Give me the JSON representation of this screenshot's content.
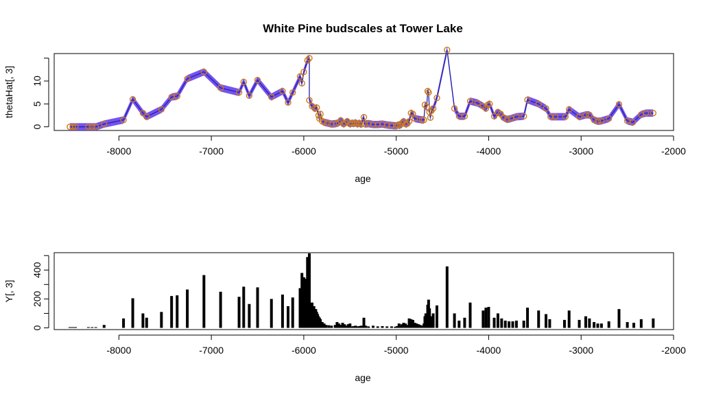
{
  "chart_data": [
    {
      "type": "line",
      "title": "White Pine budscales at Tower Lake",
      "xlabel": "age",
      "ylabel": "thetaHat[, 3]",
      "xlim": [
        -8700,
        -2000
      ],
      "ylim": [
        -0.8,
        16
      ],
      "x_ticks": [
        -8000,
        -7000,
        -6000,
        -5000,
        -4000,
        -3000,
        -2000
      ],
      "x_tick_labels": [
        "-8000",
        "-7000",
        "-6000",
        "-5000",
        "-4000",
        "-3000",
        "-2000"
      ],
      "y_ticks": [
        0,
        5,
        10
      ],
      "y_tick_labels": [
        "0",
        "5",
        "10"
      ],
      "y_minor_ticks": [
        15
      ],
      "colors": {
        "band": "#6640ee",
        "line": "#2222aa",
        "points": "#cc7a1a"
      },
      "band_width": 0.8,
      "series": [
        {
          "points": [
            [
              -8530,
              0
            ],
            [
              -8500,
              0
            ],
            [
              -8470,
              0
            ],
            [
              -8330,
              0
            ],
            [
              -8290,
              0
            ],
            [
              -8250,
              0
            ],
            [
              -8160,
              0.6
            ],
            [
              -7950,
              1.5
            ],
            [
              -7850,
              6
            ],
            [
              -7740,
              3
            ],
            [
              -7700,
              2.2
            ],
            [
              -7540,
              3.8
            ],
            [
              -7430,
              6.5
            ],
            [
              -7370,
              6.7
            ],
            [
              -7260,
              10.5
            ],
            [
              -7080,
              12
            ],
            [
              -6900,
              8.5
            ],
            [
              -6700,
              7.5
            ],
            [
              -6650,
              9.8
            ],
            [
              -6590,
              6.8
            ],
            [
              -6500,
              10.2
            ],
            [
              -6350,
              6.5
            ],
            [
              -6230,
              7.8
            ],
            [
              -6170,
              5.3
            ],
            [
              -6120,
              7.5
            ],
            [
              -6040,
              11
            ],
            [
              -6020,
              9.5
            ],
            [
              -6000,
              12
            ],
            [
              -5960,
              14.5
            ],
            [
              -5940,
              15
            ],
            [
              -5940,
              5.8
            ],
            [
              -5910,
              4.5
            ],
            [
              -5880,
              4
            ],
            [
              -5860,
              4.2
            ],
            [
              -5840,
              2.5
            ],
            [
              -5830,
              1.8
            ],
            [
              -5820,
              2.8
            ],
            [
              -5800,
              1.2
            ],
            [
              -5780,
              1
            ],
            [
              -5740,
              0.8
            ],
            [
              -5700,
              0.6
            ],
            [
              -5650,
              0.7
            ],
            [
              -5620,
              0.9
            ],
            [
              -5600,
              1.4
            ],
            [
              -5570,
              0.6
            ],
            [
              -5550,
              0.8
            ],
            [
              -5530,
              1.2
            ],
            [
              -5500,
              0.6
            ],
            [
              -5480,
              0.8
            ],
            [
              -5460,
              0.7
            ],
            [
              -5440,
              0.9
            ],
            [
              -5420,
              0.6
            ],
            [
              -5400,
              0.8
            ],
            [
              -5380,
              0.5
            ],
            [
              -5350,
              2.1
            ],
            [
              -5340,
              0.6
            ],
            [
              -5300,
              0.7
            ],
            [
              -5250,
              0.5
            ],
            [
              -5200,
              0.5
            ],
            [
              -5150,
              0.6
            ],
            [
              -5100,
              0.4
            ],
            [
              -5050,
              0.3
            ],
            [
              -5000,
              0.2
            ],
            [
              -4980,
              0.4
            ],
            [
              -4960,
              0.3
            ],
            [
              -4940,
              0.8
            ],
            [
              -4920,
              1.2
            ],
            [
              -4900,
              0.6
            ],
            [
              -4880,
              0.7
            ],
            [
              -4860,
              1.2
            ],
            [
              -4840,
              3
            ],
            [
              -4820,
              2.8
            ],
            [
              -4800,
              1.8
            ],
            [
              -4720,
              1.5
            ],
            [
              -4700,
              1.5
            ],
            [
              -4690,
              4.8
            ],
            [
              -4670,
              4.3
            ],
            [
              -4660,
              7.8
            ],
            [
              -4650,
              7.5
            ],
            [
              -4640,
              3.2
            ],
            [
              -4630,
              2
            ],
            [
              -4620,
              3.5
            ],
            [
              -4600,
              4
            ],
            [
              -4560,
              6.3
            ],
            [
              -4450,
              16.8
            ],
            [
              -4370,
              4
            ],
            [
              -4320,
              2.3
            ],
            [
              -4260,
              2.3
            ],
            [
              -4200,
              5.6
            ],
            [
              -4120,
              5.2
            ],
            [
              -4060,
              4.5
            ],
            [
              -4030,
              4
            ],
            [
              -4010,
              4.8
            ],
            [
              -3990,
              5
            ],
            [
              -3940,
              2.3
            ],
            [
              -3900,
              3.2
            ],
            [
              -3870,
              2.8
            ],
            [
              -3840,
              2
            ],
            [
              -3800,
              1.6
            ],
            [
              -3760,
              1.8
            ],
            [
              -3700,
              2.2
            ],
            [
              -3620,
              2.3
            ],
            [
              -3580,
              5.9
            ],
            [
              -3460,
              5
            ],
            [
              -3380,
              4
            ],
            [
              -3330,
              2.2
            ],
            [
              -3280,
              2.2
            ],
            [
              -3170,
              2.2
            ],
            [
              -3130,
              3.8
            ],
            [
              -3020,
              2.2
            ],
            [
              -2950,
              2.6
            ],
            [
              -2910,
              2.6
            ],
            [
              -2860,
              1.5
            ],
            [
              -2820,
              1.2
            ],
            [
              -2780,
              1.3
            ],
            [
              -2700,
              1.8
            ],
            [
              -2590,
              4.9
            ],
            [
              -2500,
              1.3
            ],
            [
              -2440,
              1
            ],
            [
              -2350,
              2.7
            ],
            [
              -2300,
              3
            ],
            [
              -2220,
              3
            ]
          ]
        }
      ]
    },
    {
      "type": "bar",
      "title": "",
      "xlabel": "age",
      "ylabel": "Y[, 3]",
      "xlim": [
        -8700,
        -2000
      ],
      "ylim": [
        -12,
        520
      ],
      "x_ticks": [
        -8000,
        -7000,
        -6000,
        -5000,
        -4000,
        -3000,
        -2000
      ],
      "x_tick_labels": [
        "-8000",
        "-7000",
        "-6000",
        "-5000",
        "-4000",
        "-3000",
        "-2000"
      ],
      "y_ticks": [
        0,
        200,
        400
      ],
      "y_tick_labels": [
        "0",
        "200",
        "400"
      ],
      "y_minor_ticks": [
        100,
        300,
        500
      ],
      "colors": {
        "bars": "#000000"
      },
      "points": [
        [
          -8530,
          5
        ],
        [
          -8500,
          5
        ],
        [
          -8470,
          5
        ],
        [
          -8330,
          5
        ],
        [
          -8290,
          5
        ],
        [
          -8250,
          5
        ],
        [
          -8160,
          20
        ],
        [
          -7950,
          65
        ],
        [
          -7850,
          205
        ],
        [
          -7740,
          100
        ],
        [
          -7700,
          70
        ],
        [
          -7540,
          110
        ],
        [
          -7430,
          220
        ],
        [
          -7370,
          225
        ],
        [
          -7260,
          265
        ],
        [
          -7080,
          365
        ],
        [
          -6900,
          250
        ],
        [
          -6700,
          215
        ],
        [
          -6650,
          285
        ],
        [
          -6590,
          165
        ],
        [
          -6500,
          280
        ],
        [
          -6350,
          200
        ],
        [
          -6230,
          230
        ],
        [
          -6170,
          150
        ],
        [
          -6120,
          210
        ],
        [
          -6040,
          275
        ],
        [
          -6020,
          380
        ],
        [
          -6000,
          350
        ],
        [
          -5980,
          340
        ],
        [
          -5960,
          490
        ],
        [
          -5940,
          515
        ],
        [
          -5920,
          160
        ],
        [
          -5910,
          175
        ],
        [
          -5890,
          150
        ],
        [
          -5880,
          120
        ],
        [
          -5870,
          130
        ],
        [
          -5860,
          110
        ],
        [
          -5850,
          95
        ],
        [
          -5840,
          80
        ],
        [
          -5830,
          70
        ],
        [
          -5820,
          60
        ],
        [
          -5800,
          40
        ],
        [
          -5780,
          30
        ],
        [
          -5760,
          20
        ],
        [
          -5730,
          18
        ],
        [
          -5700,
          15
        ],
        [
          -5660,
          20
        ],
        [
          -5640,
          40
        ],
        [
          -5620,
          30
        ],
        [
          -5600,
          20
        ],
        [
          -5580,
          35
        ],
        [
          -5560,
          25
        ],
        [
          -5540,
          15
        ],
        [
          -5520,
          25
        ],
        [
          -5500,
          30
        ],
        [
          -5480,
          10
        ],
        [
          -5460,
          12
        ],
        [
          -5440,
          15
        ],
        [
          -5420,
          10
        ],
        [
          -5400,
          12
        ],
        [
          -5380,
          15
        ],
        [
          -5360,
          10
        ],
        [
          -5350,
          70
        ],
        [
          -5330,
          15
        ],
        [
          -5300,
          10
        ],
        [
          -5250,
          15
        ],
        [
          -5200,
          10
        ],
        [
          -5150,
          12
        ],
        [
          -5100,
          10
        ],
        [
          -5050,
          10
        ],
        [
          -5010,
          8
        ],
        [
          -4990,
          12
        ],
        [
          -4970,
          30
        ],
        [
          -4960,
          12
        ],
        [
          -4940,
          25
        ],
        [
          -4920,
          35
        ],
        [
          -4900,
          30
        ],
        [
          -4880,
          20
        ],
        [
          -4860,
          65
        ],
        [
          -4840,
          60
        ],
        [
          -4820,
          55
        ],
        [
          -4800,
          35
        ],
        [
          -4780,
          30
        ],
        [
          -4760,
          25
        ],
        [
          -4740,
          20
        ],
        [
          -4720,
          15
        ],
        [
          -4700,
          30
        ],
        [
          -4690,
          80
        ],
        [
          -4680,
          100
        ],
        [
          -4670,
          70
        ],
        [
          -4660,
          160
        ],
        [
          -4650,
          195
        ],
        [
          -4640,
          135
        ],
        [
          -4630,
          60
        ],
        [
          -4620,
          80
        ],
        [
          -4600,
          100
        ],
        [
          -4560,
          155
        ],
        [
          -4450,
          425
        ],
        [
          -4370,
          100
        ],
        [
          -4320,
          50
        ],
        [
          -4260,
          70
        ],
        [
          -4200,
          175
        ],
        [
          -4060,
          120
        ],
        [
          -4030,
          140
        ],
        [
          -4000,
          145
        ],
        [
          -3940,
          70
        ],
        [
          -3900,
          100
        ],
        [
          -3860,
          65
        ],
        [
          -3820,
          50
        ],
        [
          -3780,
          45
        ],
        [
          -3740,
          45
        ],
        [
          -3700,
          50
        ],
        [
          -3620,
          50
        ],
        [
          -3580,
          140
        ],
        [
          -3460,
          120
        ],
        [
          -3380,
          95
        ],
        [
          -3340,
          60
        ],
        [
          -3180,
          55
        ],
        [
          -3130,
          120
        ],
        [
          -3020,
          55
        ],
        [
          -2950,
          80
        ],
        [
          -2910,
          65
        ],
        [
          -2860,
          40
        ],
        [
          -2820,
          30
        ],
        [
          -2780,
          30
        ],
        [
          -2700,
          45
        ],
        [
          -2590,
          130
        ],
        [
          -2500,
          40
        ],
        [
          -2430,
          35
        ],
        [
          -2350,
          60
        ],
        [
          -2220,
          65
        ]
      ]
    }
  ]
}
